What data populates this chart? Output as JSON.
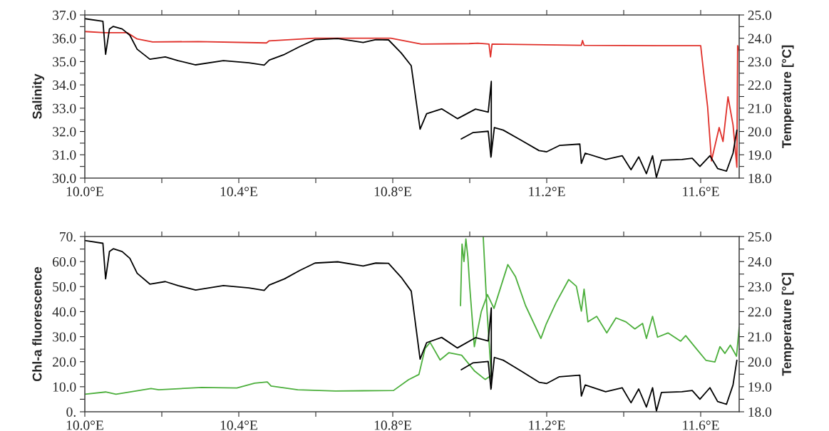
{
  "chart_data": [
    {
      "type": "line",
      "ylabel": "Salinity",
      "y2label": "Temperature [°C]",
      "xlim": [
        10.0,
        11.7
      ],
      "xticks": [
        {
          "value": 10.0,
          "label": "10.0°E"
        },
        {
          "value": 10.2,
          "label": null
        },
        {
          "value": 10.4,
          "label": "10.4°E"
        },
        {
          "value": 10.6,
          "label": null
        },
        {
          "value": 10.8,
          "label": "10.8°E"
        },
        {
          "value": 11.0,
          "label": null
        },
        {
          "value": 11.2,
          "label": "11.2°E"
        },
        {
          "value": 11.4,
          "label": null
        },
        {
          "value": 11.6,
          "label": "11.6°E"
        }
      ],
      "ylim": [
        30,
        37
      ],
      "yticks": [
        {
          "value": 30,
          "label": "30.0"
        },
        {
          "value": 30.5,
          "label": null
        },
        {
          "value": 31,
          "label": "31.0"
        },
        {
          "value": 31.5,
          "label": null
        },
        {
          "value": 32,
          "label": "32.0"
        },
        {
          "value": 32.5,
          "label": null
        },
        {
          "value": 33,
          "label": "33.0"
        },
        {
          "value": 33.5,
          "label": null
        },
        {
          "value": 34,
          "label": "34.0"
        },
        {
          "value": 34.5,
          "label": null
        },
        {
          "value": 35,
          "label": "35.0"
        },
        {
          "value": 35.5,
          "label": null
        },
        {
          "value": 36,
          "label": "36.0"
        },
        {
          "value": 36.5,
          "label": null
        },
        {
          "value": 37,
          "label": "37.0"
        }
      ],
      "y2lim": [
        18,
        25
      ],
      "y2ticks": [
        {
          "value": 18,
          "label": "18.0"
        },
        {
          "value": 18.5,
          "label": null
        },
        {
          "value": 19,
          "label": "19.0"
        },
        {
          "value": 19.5,
          "label": null
        },
        {
          "value": 20,
          "label": "20.0"
        },
        {
          "value": 20.5,
          "label": null
        },
        {
          "value": 21,
          "label": "21.0"
        },
        {
          "value": 21.5,
          "label": null
        },
        {
          "value": 22,
          "label": "22.0"
        },
        {
          "value": 22.5,
          "label": null
        },
        {
          "value": 23,
          "label": "23.0"
        },
        {
          "value": 23.5,
          "label": null
        },
        {
          "value": 24,
          "label": "24.0"
        },
        {
          "value": 24.5,
          "label": null
        },
        {
          "value": 25,
          "label": "25.0"
        }
      ],
      "series": [
        {
          "color": "#e0302a",
          "x": [
            10.0,
            10.051,
            10.11,
            10.136,
            10.176,
            10.295,
            10.472,
            10.479,
            10.598,
            10.795,
            10.874,
            10.998,
            11.021,
            11.05,
            11.054,
            11.058,
            11.29,
            11.293,
            11.297,
            11.485,
            11.6,
            11.608,
            11.618,
            11.628,
            11.648,
            11.658,
            11.671,
            11.684,
            11.694,
            11.696,
            11.7
          ],
          "values": [
            36.29,
            36.24,
            36.24,
            35.97,
            35.84,
            35.86,
            35.8,
            35.89,
            36.0,
            36.0,
            35.75,
            35.77,
            35.79,
            35.75,
            35.2,
            35.75,
            35.7,
            35.9,
            35.7,
            35.68,
            35.68,
            34.48,
            33.05,
            30.74,
            32.17,
            31.57,
            33.49,
            32.28,
            30.47,
            35.68,
            35.46
          ]
        },
        {
          "axis": "y2",
          "color": "#000000",
          "x": [
            10.0,
            10.047,
            10.054,
            10.064,
            10.074,
            10.097,
            10.117,
            10.136,
            10.169,
            10.209,
            10.242,
            10.288,
            10.36,
            10.426,
            10.466,
            10.479,
            10.519,
            10.558,
            10.598,
            10.657,
            10.723,
            10.756,
            10.789,
            10.822,
            10.848,
            10.871,
            10.888,
            10.927,
            10.968,
            11.015,
            11.048,
            11.056,
            11.056
          ],
          "values": [
            24.84,
            24.73,
            23.31,
            24.4,
            24.51,
            24.4,
            24.13,
            23.53,
            23.1,
            23.2,
            23.04,
            22.86,
            23.04,
            22.95,
            22.85,
            23.06,
            23.31,
            23.64,
            23.94,
            23.99,
            23.82,
            23.94,
            23.93,
            23.37,
            22.82,
            20.1,
            20.76,
            20.97,
            20.55,
            20.96,
            20.83,
            22.15,
            18.96
          ]
        },
        {
          "axis": "y2",
          "color": "#000000",
          "x": [
            10.978,
            11.008,
            11.048,
            11.055,
            11.064,
            11.087,
            11.134,
            11.18,
            11.2,
            11.233,
            11.286,
            11.29,
            11.3,
            11.353,
            11.396,
            11.419,
            11.439,
            11.459,
            11.475,
            11.485,
            11.498,
            11.551,
            11.578,
            11.598,
            11.624,
            11.644,
            11.667,
            11.684,
            11.694
          ],
          "values": [
            19.68,
            19.95,
            20.01,
            18.9,
            20.17,
            20.06,
            19.62,
            19.18,
            19.13,
            19.4,
            19.46,
            18.63,
            19.07,
            18.8,
            18.96,
            18.36,
            18.91,
            18.19,
            18.96,
            18.03,
            18.77,
            18.8,
            18.85,
            18.5,
            18.96,
            18.41,
            18.3,
            19.07,
            20.06
          ]
        }
      ]
    },
    {
      "type": "line",
      "ylabel": "Chl-a fluorescence",
      "y2label": "Temperature [°C]",
      "xlim": [
        10.0,
        11.7
      ],
      "xticks": [
        {
          "value": 10.0,
          "label": "10.0°E"
        },
        {
          "value": 10.2,
          "label": null
        },
        {
          "value": 10.4,
          "label": "10.4°E"
        },
        {
          "value": 10.6,
          "label": null
        },
        {
          "value": 10.8,
          "label": "10.8°E"
        },
        {
          "value": 11.0,
          "label": null
        },
        {
          "value": 11.2,
          "label": "11.2°E"
        },
        {
          "value": 11.4,
          "label": null
        },
        {
          "value": 11.6,
          "label": "11.6°E"
        }
      ],
      "ylim": [
        0,
        70
      ],
      "yticks": [
        {
          "value": 0,
          "label": "0."
        },
        {
          "value": 5,
          "label": null
        },
        {
          "value": 10,
          "label": "10.0"
        },
        {
          "value": 15,
          "label": null
        },
        {
          "value": 20,
          "label": "20.0"
        },
        {
          "value": 25,
          "label": null
        },
        {
          "value": 30,
          "label": "30.0"
        },
        {
          "value": 35,
          "label": null
        },
        {
          "value": 40,
          "label": "40.0"
        },
        {
          "value": 45,
          "label": null
        },
        {
          "value": 50,
          "label": "50.0"
        },
        {
          "value": 55,
          "label": null
        },
        {
          "value": 60,
          "label": "60.0"
        },
        {
          "value": 65,
          "label": null
        },
        {
          "value": 70,
          "label": "70."
        }
      ],
      "y2lim": [
        18,
        25
      ],
      "y2ticks": [
        {
          "value": 18,
          "label": "18.0"
        },
        {
          "value": 18.5,
          "label": null
        },
        {
          "value": 19,
          "label": "19.0"
        },
        {
          "value": 19.5,
          "label": null
        },
        {
          "value": 20,
          "label": "20.0"
        },
        {
          "value": 20.5,
          "label": null
        },
        {
          "value": 21,
          "label": "21.0"
        },
        {
          "value": 21.5,
          "label": null
        },
        {
          "value": 22,
          "label": "22.0"
        },
        {
          "value": 22.5,
          "label": null
        },
        {
          "value": 23,
          "label": "23.0"
        },
        {
          "value": 23.5,
          "label": null
        },
        {
          "value": 24,
          "label": "24.0"
        },
        {
          "value": 24.5,
          "label": null
        },
        {
          "value": 25,
          "label": "25.0"
        }
      ],
      "series": [
        {
          "color": "#4caf3c",
          "x": [
            10.0,
            10.054,
            10.081,
            10.172,
            10.192,
            10.304,
            10.395,
            10.441,
            10.474,
            10.484,
            10.553,
            10.651,
            10.802,
            10.841,
            10.868,
            10.884,
            10.897,
            10.923,
            10.946,
            10.979,
            11.013,
            11.04,
            11.056,
            11.045,
            11.035
          ],
          "values": [
            7.0,
            7.9,
            7.0,
            9.3,
            8.8,
            9.7,
            9.5,
            11.4,
            11.9,
            10.3,
            8.8,
            8.3,
            8.5,
            12.8,
            14.9,
            25.3,
            27.7,
            20.7,
            23.6,
            22.6,
            16.2,
            12.9,
            14.5,
            40.0,
            70.0
          ]
        },
        {
          "color": "#4caf3c",
          "x": [
            10.976,
            10.98,
            10.985,
            10.99,
            10.995,
            11.0,
            11.012,
            11.03,
            11.046,
            11.063,
            11.099,
            11.119,
            11.145,
            11.185,
            11.198,
            11.224,
            11.257,
            11.277,
            11.29,
            11.297,
            11.307,
            11.33,
            11.356,
            11.38,
            11.406,
            11.429,
            11.449,
            11.459,
            11.475,
            11.488,
            11.515,
            11.548,
            11.561,
            11.587,
            11.614,
            11.637,
            11.65,
            11.663,
            11.677,
            11.693,
            11.7
          ],
          "values": [
            42.4,
            67.0,
            60.0,
            69.0,
            62.0,
            50.0,
            26.0,
            40.0,
            46.8,
            41.3,
            58.8,
            53.9,
            42.4,
            29.3,
            34.8,
            43.5,
            52.8,
            50.1,
            40.2,
            49.0,
            35.9,
            38.1,
            31.5,
            37.5,
            35.9,
            33.1,
            35.3,
            29.3,
            38.1,
            29.8,
            31.5,
            28.2,
            30.4,
            25.5,
            20.5,
            19.9,
            26.0,
            23.3,
            26.6,
            22.2,
            33.7
          ]
        },
        {
          "axis": "y2",
          "color": "#000000",
          "x": [
            10.0,
            10.047,
            10.054,
            10.064,
            10.074,
            10.097,
            10.117,
            10.136,
            10.169,
            10.209,
            10.242,
            10.288,
            10.36,
            10.426,
            10.466,
            10.479,
            10.519,
            10.558,
            10.598,
            10.657,
            10.723,
            10.756,
            10.789,
            10.822,
            10.848,
            10.871,
            10.888,
            10.927,
            10.968,
            11.015,
            11.048,
            11.056,
            11.056
          ],
          "values": [
            24.84,
            24.73,
            23.31,
            24.4,
            24.51,
            24.4,
            24.13,
            23.53,
            23.1,
            23.2,
            23.04,
            22.86,
            23.04,
            22.95,
            22.85,
            23.06,
            23.31,
            23.64,
            23.94,
            23.99,
            23.82,
            23.94,
            23.93,
            23.37,
            22.82,
            20.1,
            20.76,
            20.97,
            20.55,
            20.96,
            20.83,
            22.15,
            18.96
          ]
        },
        {
          "axis": "y2",
          "color": "#000000",
          "x": [
            10.978,
            11.008,
            11.048,
            11.055,
            11.064,
            11.087,
            11.134,
            11.18,
            11.2,
            11.233,
            11.286,
            11.29,
            11.3,
            11.353,
            11.396,
            11.419,
            11.439,
            11.459,
            11.475,
            11.485,
            11.498,
            11.551,
            11.578,
            11.598,
            11.624,
            11.644,
            11.667,
            11.684,
            11.694
          ],
          "values": [
            19.68,
            19.95,
            20.01,
            18.9,
            20.17,
            20.06,
            19.62,
            19.18,
            19.13,
            19.4,
            19.46,
            18.63,
            19.07,
            18.8,
            18.96,
            18.36,
            18.91,
            18.19,
            18.96,
            18.03,
            18.77,
            18.8,
            18.85,
            18.5,
            18.96,
            18.41,
            18.3,
            19.07,
            20.06
          ]
        }
      ]
    }
  ]
}
